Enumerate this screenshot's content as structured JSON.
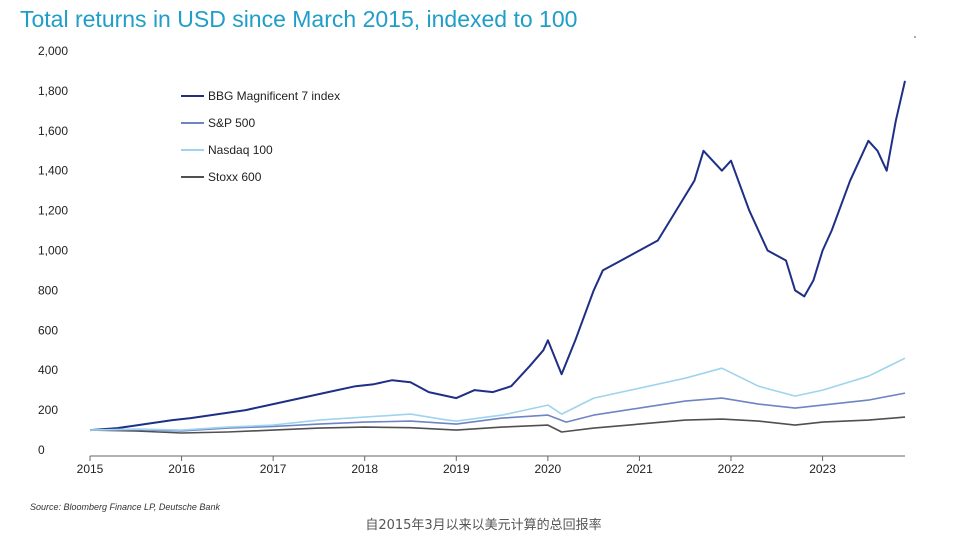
{
  "caption": "自2015年3月以来以美元计算的总回报率",
  "source": "Source: Bloomberg Finance LP, Deutsche Bank",
  "chart_data": {
    "type": "line",
    "title": "Total returns in USD since March 2015, indexed to 100",
    "xlabel": "",
    "ylabel": "",
    "xlim": [
      2015.0,
      2023.9
    ],
    "ylim": [
      0,
      2000
    ],
    "xticks": [
      2015,
      2016,
      2017,
      2018,
      2019,
      2020,
      2021,
      2022,
      2023
    ],
    "yticks": [
      0,
      200,
      400,
      600,
      800,
      1000,
      1200,
      1400,
      1600,
      1800,
      2000
    ],
    "ytick_labels": [
      "0",
      "200",
      "400",
      "600",
      "800",
      "1,000",
      "1,200",
      "1,400",
      "1,600",
      "1,800",
      "2,000"
    ],
    "grid": false,
    "legend_position": "top-left",
    "series": [
      {
        "name": "BBG Magnificent 7 index",
        "color": "#1f2f86",
        "x": [
          2015.0,
          2015.3,
          2015.6,
          2015.9,
          2016.1,
          2016.4,
          2016.7,
          2016.9,
          2017.2,
          2017.4,
          2017.6,
          2017.9,
          2018.1,
          2018.3,
          2018.5,
          2018.7,
          2018.9,
          2019.0,
          2019.2,
          2019.4,
          2019.6,
          2019.8,
          2019.95,
          2020.0,
          2020.15,
          2020.3,
          2020.5,
          2020.6,
          2020.8,
          2021.0,
          2021.2,
          2021.4,
          2021.6,
          2021.7,
          2021.9,
          2022.0,
          2022.2,
          2022.4,
          2022.6,
          2022.7,
          2022.8,
          2022.9,
          2023.0,
          2023.1,
          2023.3,
          2023.5,
          2023.6,
          2023.7,
          2023.8,
          2023.9
        ],
        "y": [
          100,
          110,
          130,
          150,
          160,
          180,
          200,
          220,
          250,
          270,
          290,
          320,
          330,
          350,
          340,
          290,
          270,
          260,
          300,
          290,
          320,
          420,
          500,
          550,
          380,
          550,
          800,
          900,
          950,
          1000,
          1050,
          1200,
          1350,
          1500,
          1400,
          1450,
          1200,
          1000,
          950,
          800,
          770,
          850,
          1000,
          1100,
          1350,
          1550,
          1500,
          1400,
          1650,
          1850
        ]
      },
      {
        "name": "S&P 500",
        "color": "#6f84c4",
        "x": [
          2015.0,
          2015.5,
          2016.0,
          2016.5,
          2017.0,
          2017.5,
          2018.0,
          2018.5,
          2019.0,
          2019.5,
          2020.0,
          2020.2,
          2020.5,
          2021.0,
          2021.5,
          2021.9,
          2022.3,
          2022.7,
          2023.0,
          2023.5,
          2023.9
        ],
        "y": [
          100,
          102,
          95,
          110,
          118,
          130,
          140,
          145,
          130,
          160,
          175,
          140,
          175,
          210,
          245,
          260,
          230,
          210,
          225,
          250,
          285
        ]
      },
      {
        "name": "Nasdaq 100",
        "color": "#9fd4ee",
        "x": [
          2015.0,
          2015.5,
          2016.0,
          2016.5,
          2017.0,
          2017.5,
          2018.0,
          2018.5,
          2018.9,
          2019.0,
          2019.5,
          2020.0,
          2020.15,
          2020.5,
          2021.0,
          2021.5,
          2021.9,
          2022.3,
          2022.7,
          2023.0,
          2023.5,
          2023.9
        ],
        "y": [
          100,
          105,
          100,
          115,
          125,
          150,
          165,
          180,
          150,
          145,
          175,
          225,
          180,
          260,
          310,
          360,
          410,
          320,
          270,
          300,
          370,
          460
        ]
      },
      {
        "name": "Stoxx 600",
        "color": "#505050",
        "x": [
          2015.0,
          2015.5,
          2016.0,
          2016.5,
          2017.0,
          2017.5,
          2018.0,
          2018.5,
          2019.0,
          2019.5,
          2020.0,
          2020.15,
          2020.5,
          2021.0,
          2021.5,
          2021.9,
          2022.3,
          2022.7,
          2023.0,
          2023.5,
          2023.9
        ],
        "y": [
          100,
          95,
          85,
          90,
          100,
          110,
          115,
          112,
          100,
          115,
          125,
          90,
          110,
          130,
          150,
          155,
          145,
          125,
          140,
          150,
          165
        ]
      }
    ]
  }
}
